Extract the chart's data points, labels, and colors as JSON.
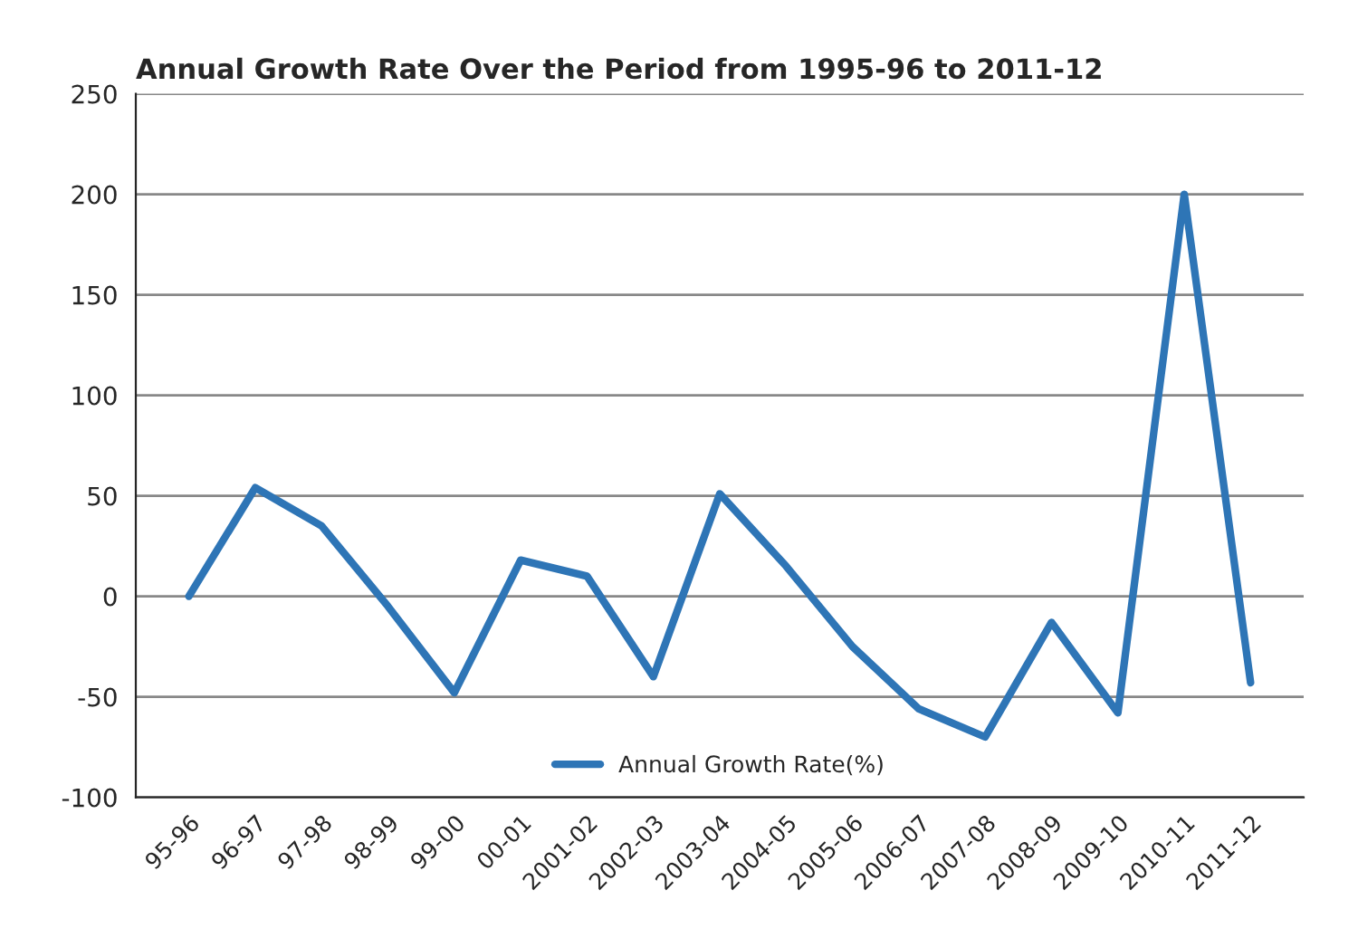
{
  "chart_data": {
    "type": "line",
    "title": "Annual Growth Rate Over the Period from 1995-96 to 2011-12",
    "categories": [
      "95-96",
      "96-97",
      "97-98",
      "98-99",
      "99-00",
      "00-01",
      "2001-02",
      "2002-03",
      "2003-04",
      "2004-05",
      "2005-06",
      "2006-07",
      "2007-08",
      "2008-09",
      "2009-10",
      "2010-11",
      "2011-12"
    ],
    "series": [
      {
        "name": "Annual Growth Rate(%)",
        "color": "#2e75b6",
        "values": [
          0,
          54,
          35,
          -5,
          -48,
          18,
          10,
          -40,
          51,
          15,
          -25,
          -56,
          -70,
          -13,
          -58,
          200,
          -43
        ]
      }
    ],
    "ylim": [
      -100,
      250
    ],
    "yticks": [
      -100,
      -50,
      0,
      50,
      100,
      150,
      200,
      250
    ],
    "grid": "y",
    "legend": "bottom",
    "marker": "none",
    "line_style": "solid"
  }
}
